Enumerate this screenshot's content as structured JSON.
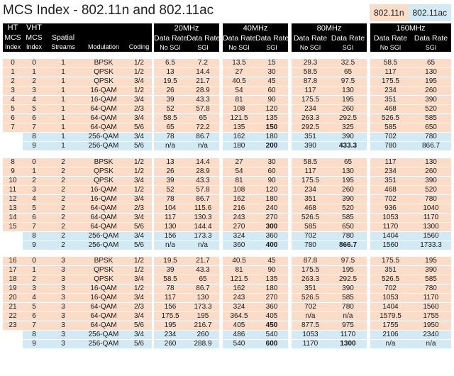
{
  "title": "MCS Index - 802.11n and 802.11ac",
  "legend": {
    "n": "802.11n",
    "ac": "802.11ac"
  },
  "colors": {
    "n_row": "#fbdcc9",
    "ac_row": "#d3e9f3",
    "header": "#000000"
  },
  "header": {
    "ht": [
      "HT",
      "MCS",
      "Index"
    ],
    "vht": [
      "VHT",
      "MCS",
      "Index"
    ],
    "spatial": [
      "Spatial",
      "Streams"
    ],
    "modulation": "Modulation",
    "coding": "Coding",
    "bands": [
      "20MHz",
      "40MHz",
      "80MHz",
      "160MHz"
    ],
    "data_rate": "Data Rate",
    "no_sgi": "No SGI",
    "sgi": "SGI"
  },
  "groups": [
    {
      "rows": [
        {
          "ht": "0",
          "vht": "0",
          "ss": "1",
          "mod": "BPSK",
          "cod": "1/2",
          "r": [
            "6.5",
            "7.2",
            "13.5",
            "15",
            "29.3",
            "32.5",
            "58.5",
            "65"
          ]
        },
        {
          "ht": "1",
          "vht": "1",
          "ss": "1",
          "mod": "QPSK",
          "cod": "1/2",
          "r": [
            "13",
            "14.4",
            "27",
            "30",
            "58.5",
            "65",
            "117",
            "130"
          ]
        },
        {
          "ht": "2",
          "vht": "2",
          "ss": "1",
          "mod": "QPSK",
          "cod": "3/4",
          "r": [
            "19.5",
            "21.7",
            "40.5",
            "45",
            "87.8",
            "97.5",
            "175.5",
            "195"
          ]
        },
        {
          "ht": "3",
          "vht": "3",
          "ss": "1",
          "mod": "16-QAM",
          "cod": "1/2",
          "r": [
            "26",
            "28.9",
            "54",
            "60",
            "117",
            "130",
            "234",
            "260"
          ]
        },
        {
          "ht": "4",
          "vht": "4",
          "ss": "1",
          "mod": "16-QAM",
          "cod": "3/4",
          "r": [
            "39",
            "43.3",
            "81",
            "90",
            "175.5",
            "195",
            "351",
            "390"
          ]
        },
        {
          "ht": "5",
          "vht": "5",
          "ss": "1",
          "mod": "64-QAM",
          "cod": "2/3",
          "r": [
            "52",
            "57.8",
            "108",
            "120",
            "234",
            "260",
            "468",
            "520"
          ]
        },
        {
          "ht": "6",
          "vht": "6",
          "ss": "1",
          "mod": "64-QAM",
          "cod": "3/4",
          "r": [
            "58.5",
            "65",
            "121.5",
            "135",
            "263.3",
            "292.5",
            "526.5",
            "585"
          ]
        },
        {
          "ht": "7",
          "vht": "7",
          "ss": "1",
          "mod": "64-QAM",
          "cod": "5/6",
          "r": [
            "65",
            "72.2",
            "135",
            "150",
            "292.5",
            "325",
            "585",
            "650"
          ],
          "bold": [
            3
          ]
        },
        {
          "ht": "",
          "vht": "8",
          "ss": "1",
          "mod": "256-QAM",
          "cod": "3/4",
          "r": [
            "78",
            "86.7",
            "162",
            "180",
            "351",
            "390",
            "702",
            "780"
          ]
        },
        {
          "ht": "",
          "vht": "9",
          "ss": "1",
          "mod": "256-QAM",
          "cod": "5/6",
          "r": [
            "n/a",
            "n/a",
            "180",
            "200",
            "390",
            "433.3",
            "780",
            "866.7"
          ],
          "bold": [
            3,
            5
          ]
        }
      ]
    },
    {
      "rows": [
        {
          "ht": "8",
          "vht": "0",
          "ss": "2",
          "mod": "BPSK",
          "cod": "1/2",
          "r": [
            "13",
            "14.4",
            "27",
            "30",
            "58.5",
            "65",
            "117",
            "130"
          ]
        },
        {
          "ht": "9",
          "vht": "1",
          "ss": "2",
          "mod": "QPSK",
          "cod": "1/2",
          "r": [
            "26",
            "28.9",
            "54",
            "60",
            "117",
            "130",
            "234",
            "260"
          ]
        },
        {
          "ht": "10",
          "vht": "2",
          "ss": "2",
          "mod": "QPSK",
          "cod": "3/4",
          "r": [
            "39",
            "43.3",
            "81",
            "90",
            "175.5",
            "195",
            "351",
            "390"
          ]
        },
        {
          "ht": "11",
          "vht": "3",
          "ss": "2",
          "mod": "16-QAM",
          "cod": "1/2",
          "r": [
            "52",
            "57.8",
            "108",
            "120",
            "234",
            "260",
            "468",
            "520"
          ]
        },
        {
          "ht": "12",
          "vht": "4",
          "ss": "2",
          "mod": "16-QAM",
          "cod": "3/4",
          "r": [
            "78",
            "86.7",
            "162",
            "180",
            "351",
            "390",
            "702",
            "780"
          ]
        },
        {
          "ht": "13",
          "vht": "5",
          "ss": "2",
          "mod": "64-QAM",
          "cod": "2/3",
          "r": [
            "104",
            "115.6",
            "216",
            "240",
            "468",
            "520",
            "936",
            "1040"
          ]
        },
        {
          "ht": "14",
          "vht": "6",
          "ss": "2",
          "mod": "64-QAM",
          "cod": "3/4",
          "r": [
            "117",
            "130.3",
            "243",
            "270",
            "526.5",
            "585",
            "1053",
            "1170"
          ]
        },
        {
          "ht": "15",
          "vht": "7",
          "ss": "2",
          "mod": "64-QAM",
          "cod": "5/6",
          "r": [
            "130",
            "144.4",
            "270",
            "300",
            "585",
            "650",
            "1170",
            "1300"
          ],
          "bold": [
            3
          ]
        },
        {
          "ht": "",
          "vht": "8",
          "ss": "2",
          "mod": "256-QAM",
          "cod": "3/4",
          "r": [
            "156",
            "173.3",
            "324",
            "360",
            "702",
            "780",
            "1404",
            "1560"
          ]
        },
        {
          "ht": "",
          "vht": "9",
          "ss": "2",
          "mod": "256-QAM",
          "cod": "5/6",
          "r": [
            "n/a",
            "n/a",
            "360",
            "400",
            "780",
            "866.7",
            "1560",
            "1733.3"
          ],
          "bold": [
            3,
            5
          ]
        }
      ]
    },
    {
      "rows": [
        {
          "ht": "16",
          "vht": "0",
          "ss": "3",
          "mod": "BPSK",
          "cod": "1/2",
          "r": [
            "19.5",
            "21.7",
            "40.5",
            "45",
            "87.8",
            "97.5",
            "175.5",
            "195"
          ]
        },
        {
          "ht": "17",
          "vht": "1",
          "ss": "3",
          "mod": "QPSK",
          "cod": "1/2",
          "r": [
            "39",
            "43.3",
            "81",
            "90",
            "175.5",
            "195",
            "351",
            "390"
          ]
        },
        {
          "ht": "18",
          "vht": "2",
          "ss": "3",
          "mod": "QPSK",
          "cod": "3/4",
          "r": [
            "58.5",
            "65",
            "121.5",
            "135",
            "263.3",
            "292.5",
            "526.5",
            "585"
          ]
        },
        {
          "ht": "19",
          "vht": "3",
          "ss": "3",
          "mod": "16-QAM",
          "cod": "1/2",
          "r": [
            "78",
            "86.7",
            "162",
            "180",
            "351",
            "390",
            "702",
            "780"
          ]
        },
        {
          "ht": "20",
          "vht": "4",
          "ss": "3",
          "mod": "16-QAM",
          "cod": "3/4",
          "r": [
            "117",
            "130",
            "243",
            "270",
            "526.5",
            "585",
            "1053",
            "1170"
          ]
        },
        {
          "ht": "21",
          "vht": "5",
          "ss": "3",
          "mod": "64-QAM",
          "cod": "2/3",
          "r": [
            "156",
            "173.3",
            "324",
            "360",
            "702",
            "780",
            "1404",
            "1560"
          ]
        },
        {
          "ht": "22",
          "vht": "6",
          "ss": "3",
          "mod": "64-QAM",
          "cod": "3/4",
          "r": [
            "175.5",
            "195",
            "364.5",
            "405",
            "n/a",
            "n/a",
            "1579.5",
            "1755"
          ]
        },
        {
          "ht": "23",
          "vht": "7",
          "ss": "3",
          "mod": "64-QAM",
          "cod": "5/6",
          "r": [
            "195",
            "216.7",
            "405",
            "450",
            "877.5",
            "975",
            "1755",
            "1950"
          ],
          "bold": [
            3
          ]
        },
        {
          "ht": "",
          "vht": "8",
          "ss": "3",
          "mod": "256-QAM",
          "cod": "3/4",
          "r": [
            "234",
            "260",
            "486",
            "540",
            "1053",
            "1170",
            "2106",
            "2340"
          ]
        },
        {
          "ht": "",
          "vht": "9",
          "ss": "3",
          "mod": "256-QAM",
          "cod": "5/6",
          "r": [
            "260",
            "288.9",
            "540",
            "600",
            "1170",
            "1300",
            "n/a",
            "n/a"
          ],
          "bold": [
            3,
            5
          ]
        }
      ]
    }
  ]
}
